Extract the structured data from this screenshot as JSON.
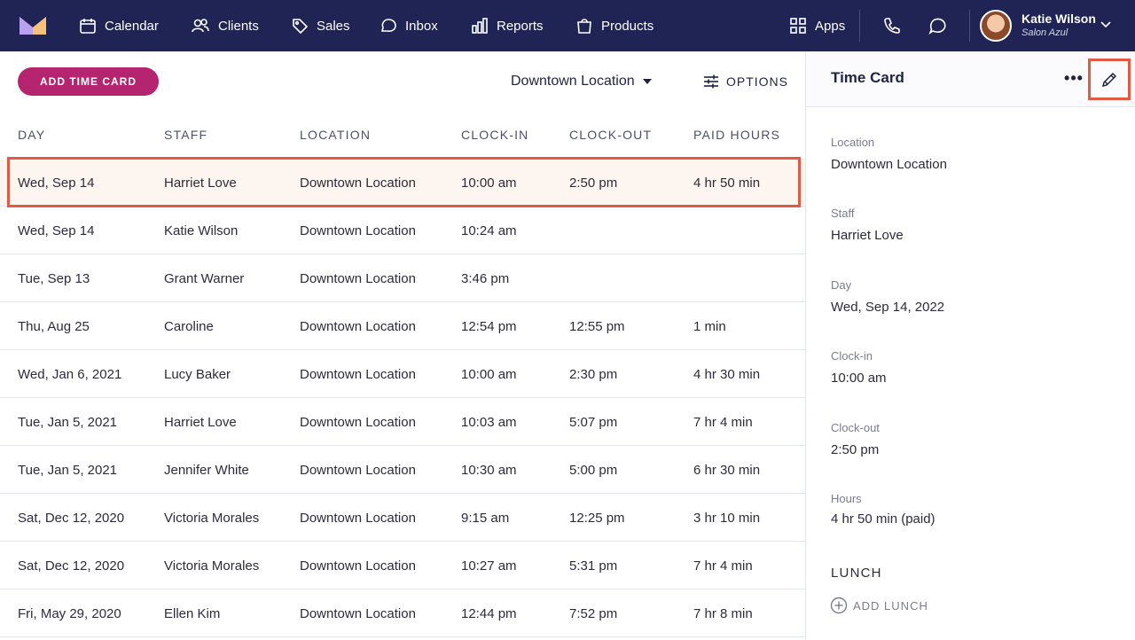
{
  "nav": {
    "items": [
      {
        "label": "Calendar",
        "icon": "calendar-icon"
      },
      {
        "label": "Clients",
        "icon": "users-icon"
      },
      {
        "label": "Sales",
        "icon": "tag-icon"
      },
      {
        "label": "Inbox",
        "icon": "chat-bubble-icon"
      },
      {
        "label": "Reports",
        "icon": "bar-chart-icon"
      },
      {
        "label": "Products",
        "icon": "shopping-bag-icon"
      }
    ],
    "apps_label": "Apps",
    "user": {
      "name": "Katie Wilson",
      "business": "Salon Azul"
    }
  },
  "toolbar": {
    "add_label": "ADD TIME CARD",
    "location": "Downtown Location",
    "options_label": "OPTIONS"
  },
  "table": {
    "headers": [
      "DAY",
      "STAFF",
      "LOCATION",
      "CLOCK-IN",
      "CLOCK-OUT",
      "PAID HOURS"
    ],
    "rows": [
      {
        "day": "Wed, Sep 14",
        "staff": "Harriet Love",
        "location": "Downtown Location",
        "clock_in": "10:00 am",
        "clock_out": "2:50 pm",
        "paid": "4 hr 50 min"
      },
      {
        "day": "Wed, Sep 14",
        "staff": "Katie Wilson",
        "location": "Downtown Location",
        "clock_in": "10:24 am",
        "clock_out": "",
        "paid": ""
      },
      {
        "day": "Tue, Sep 13",
        "staff": "Grant Warner",
        "location": "Downtown Location",
        "clock_in": "3:46 pm",
        "clock_out": "",
        "paid": ""
      },
      {
        "day": "Thu, Aug 25",
        "staff": "Caroline",
        "location": "Downtown Location",
        "clock_in": "12:54 pm",
        "clock_out": "12:55 pm",
        "paid": "1 min"
      },
      {
        "day": "Wed, Jan 6, 2021",
        "staff": "Lucy Baker",
        "location": "Downtown Location",
        "clock_in": "10:00 am",
        "clock_out": "2:30 pm",
        "paid": "4 hr 30 min"
      },
      {
        "day": "Tue, Jan 5, 2021",
        "staff": "Harriet Love",
        "location": "Downtown Location",
        "clock_in": "10:03 am",
        "clock_out": "5:07 pm",
        "paid": "7 hr 4 min"
      },
      {
        "day": "Tue, Jan 5, 2021",
        "staff": "Jennifer White",
        "location": "Downtown Location",
        "clock_in": "10:30 am",
        "clock_out": "5:00 pm",
        "paid": "6 hr 30 min"
      },
      {
        "day": "Sat, Dec 12, 2020",
        "staff": "Victoria Morales",
        "location": "Downtown Location",
        "clock_in": "9:15 am",
        "clock_out": "12:25 pm",
        "paid": "3 hr 10 min"
      },
      {
        "day": "Sat, Dec 12, 2020",
        "staff": "Victoria Morales",
        "location": "Downtown Location",
        "clock_in": "10:27 am",
        "clock_out": "5:31 pm",
        "paid": "7 hr 4 min"
      },
      {
        "day": "Fri, May 29, 2020",
        "staff": "Ellen Kim",
        "location": "Downtown Location",
        "clock_in": "12:44 pm",
        "clock_out": "7:52 pm",
        "paid": "7 hr 8 min"
      }
    ]
  },
  "panel": {
    "title": "Time Card",
    "more_label": "•••",
    "fields": [
      {
        "label": "Location",
        "value": "Downtown Location"
      },
      {
        "label": "Staff",
        "value": "Harriet Love"
      },
      {
        "label": "Day",
        "value": "Wed, Sep 14, 2022"
      },
      {
        "label": "Clock-in",
        "value": "10:00 am"
      },
      {
        "label": "Clock-out",
        "value": "2:50 pm"
      },
      {
        "label": "Hours",
        "value": "4 hr 50 min (paid)"
      }
    ],
    "lunch_title": "LUNCH",
    "add_lunch_label": "ADD LUNCH"
  },
  "colors": {
    "nav_bg": "#1f2454",
    "accent": "#b5246f",
    "highlight": "#e05a44",
    "selected_row": "#fdf5ef"
  }
}
